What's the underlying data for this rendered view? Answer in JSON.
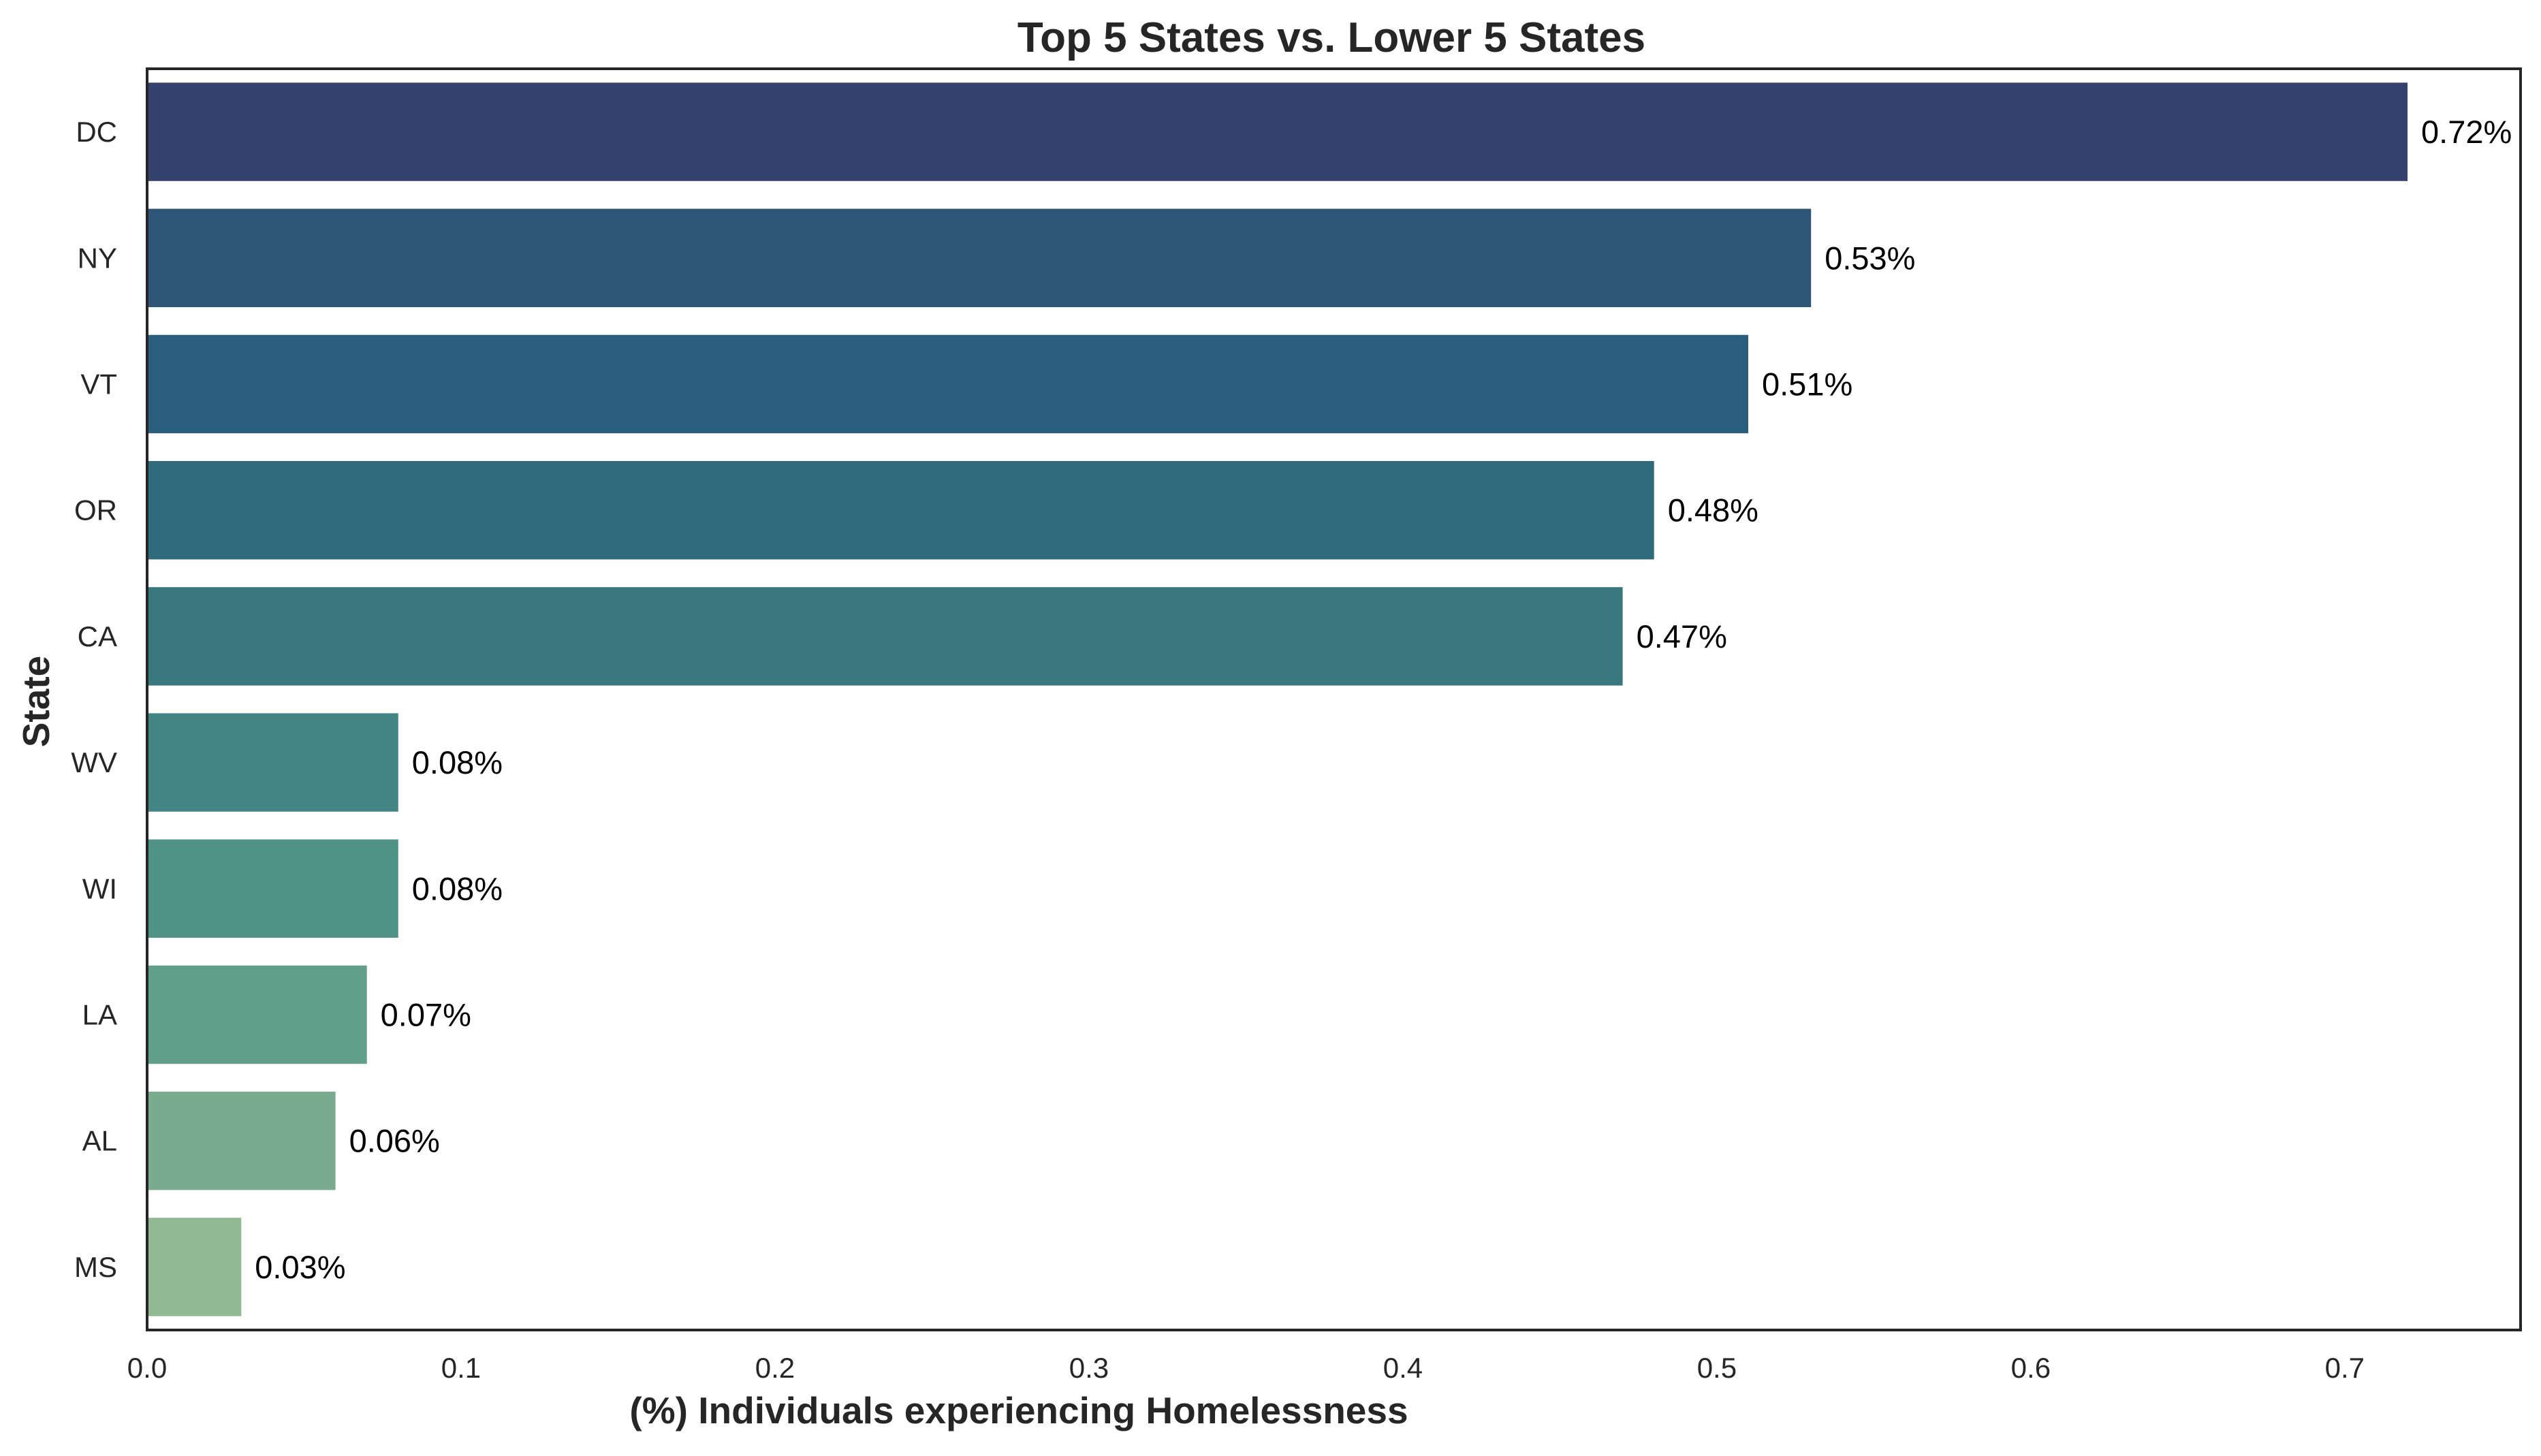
{
  "chart_data": {
    "type": "bar",
    "orientation": "horizontal",
    "title": "Top 5 States vs. Lower 5 States",
    "xlabel": "(%) Individuals experiencing Homelessness",
    "ylabel": "State",
    "categories": [
      "DC",
      "NY",
      "VT",
      "OR",
      "CA",
      "WV",
      "WI",
      "LA",
      "AL",
      "MS"
    ],
    "values": [
      0.72,
      0.53,
      0.51,
      0.48,
      0.47,
      0.08,
      0.08,
      0.07,
      0.06,
      0.03
    ],
    "data_labels": [
      "0.72%",
      "0.53%",
      "0.51%",
      "0.48%",
      "0.47%",
      "0.08%",
      "0.08%",
      "0.07%",
      "0.06%",
      "0.03%"
    ],
    "xlim": [
      0,
      0.756
    ],
    "xticks": [
      0,
      0.1,
      0.2,
      0.3,
      0.4,
      0.5,
      0.6,
      0.7
    ],
    "xtick_labels": [
      "0.0",
      "0.1",
      "0.2",
      "0.3",
      "0.4",
      "0.5",
      "0.6",
      "0.7"
    ],
    "grid": false,
    "legend": "none",
    "colors": [
      "#35426e",
      "#2e5476",
      "#2a5e7c",
      "#2f6b7d",
      "#3a787f",
      "#428583",
      "#4f9286",
      "#629f8a",
      "#7aab8e",
      "#91ba94"
    ]
  }
}
